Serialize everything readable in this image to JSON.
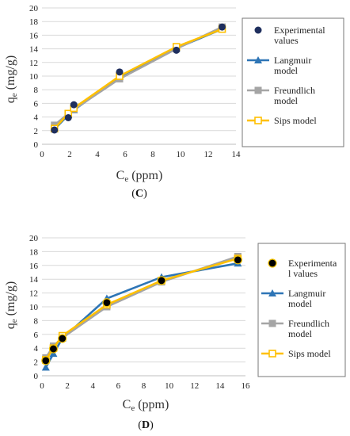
{
  "chart_data": [
    {
      "type": "scatter",
      "panel_label_open": "(",
      "panel_label_letter": "C",
      "panel_label_close": ")",
      "ylabel_main": "q",
      "ylabel_sub": "e",
      "ylabel_unit": "(mg/g)",
      "xlabel_main": "C",
      "xlabel_sub": "e",
      "xlabel_unit": "(ppm)",
      "xlim": [
        0,
        14
      ],
      "ylim": [
        0,
        20
      ],
      "xticks": [
        0,
        2,
        4,
        6,
        8,
        10,
        12,
        14
      ],
      "yticks": [
        0,
        2,
        4,
        6,
        8,
        10,
        12,
        14,
        16,
        18,
        20
      ],
      "grid": true,
      "legend_position": "right",
      "series": [
        {
          "name_lines": [
            "Experimental",
            "values"
          ],
          "style": "dot",
          "color": "#1f2f5e",
          "x": [
            0.9,
            1.9,
            2.3,
            5.6,
            9.7,
            13.0
          ],
          "y": [
            2.1,
            3.9,
            5.8,
            10.6,
            13.8,
            17.2
          ]
        },
        {
          "name_lines": [
            "Langmuir",
            "model"
          ],
          "style": "triangle",
          "color": "#2e75b6",
          "x": [
            0.9,
            1.9,
            2.3,
            5.6,
            9.7,
            13.0
          ],
          "y": [
            2.2,
            4.3,
            5.0,
            9.9,
            14.1,
            16.9
          ]
        },
        {
          "name_lines": [
            "Freundlich",
            "model"
          ],
          "style": "square",
          "color": "#a5a5a5",
          "x": [
            0.9,
            1.9,
            2.3,
            5.6,
            9.7,
            13.0
          ],
          "y": [
            2.8,
            4.5,
            5.1,
            9.6,
            14.0,
            17.2
          ]
        },
        {
          "name_lines": [
            "Sips model"
          ],
          "style": "opensquare",
          "color": "#ffc000",
          "x": [
            0.9,
            1.9,
            2.3,
            5.6,
            9.7,
            13.0
          ],
          "y": [
            2.3,
            4.5,
            5.3,
            10.0,
            14.3,
            16.9
          ]
        }
      ]
    },
    {
      "type": "scatter",
      "panel_label_open": "(",
      "panel_label_letter": "D",
      "panel_label_close": ")",
      "ylabel_main": "q",
      "ylabel_sub": "e",
      "ylabel_unit": "(mg/g)",
      "xlabel_main": "C",
      "xlabel_sub": "e",
      "xlabel_unit": "(ppm)",
      "xlim": [
        0,
        16
      ],
      "ylim": [
        0,
        20
      ],
      "xticks": [
        0,
        2,
        4,
        6,
        8,
        10,
        12,
        14,
        16
      ],
      "yticks": [
        0,
        2,
        4,
        6,
        8,
        10,
        12,
        14,
        16,
        18,
        20
      ],
      "grid": true,
      "legend_position": "right",
      "series": [
        {
          "name_lines": [
            "Experimenta",
            "l values"
          ],
          "style": "bigdot",
          "color": "#000000",
          "x": [
            0.3,
            0.9,
            1.6,
            5.1,
            9.4,
            15.4
          ],
          "y": [
            2.2,
            3.9,
            5.4,
            10.6,
            13.8,
            16.8
          ]
        },
        {
          "name_lines": [
            "Langmuir",
            "model"
          ],
          "style": "triangle",
          "color": "#2e75b6",
          "x": [
            0.3,
            0.9,
            1.6,
            5.1,
            9.4,
            15.4
          ],
          "y": [
            1.2,
            3.2,
            5.4,
            11.2,
            14.3,
            16.3
          ]
        },
        {
          "name_lines": [
            "Freundlich",
            "model"
          ],
          "style": "square",
          "color": "#a5a5a5",
          "x": [
            0.3,
            0.9,
            1.6,
            5.1,
            9.4,
            15.4
          ],
          "y": [
            2.6,
            4.3,
            5.5,
            10.0,
            13.6,
            17.3
          ]
        },
        {
          "name_lines": [
            "Sips model"
          ],
          "style": "opensquare",
          "color": "#ffc000",
          "x": [
            0.3,
            0.9,
            1.6,
            5.1,
            9.4,
            15.4
          ],
          "y": [
            2.3,
            4.0,
            5.8,
            10.3,
            13.8,
            17.0
          ]
        }
      ]
    }
  ]
}
